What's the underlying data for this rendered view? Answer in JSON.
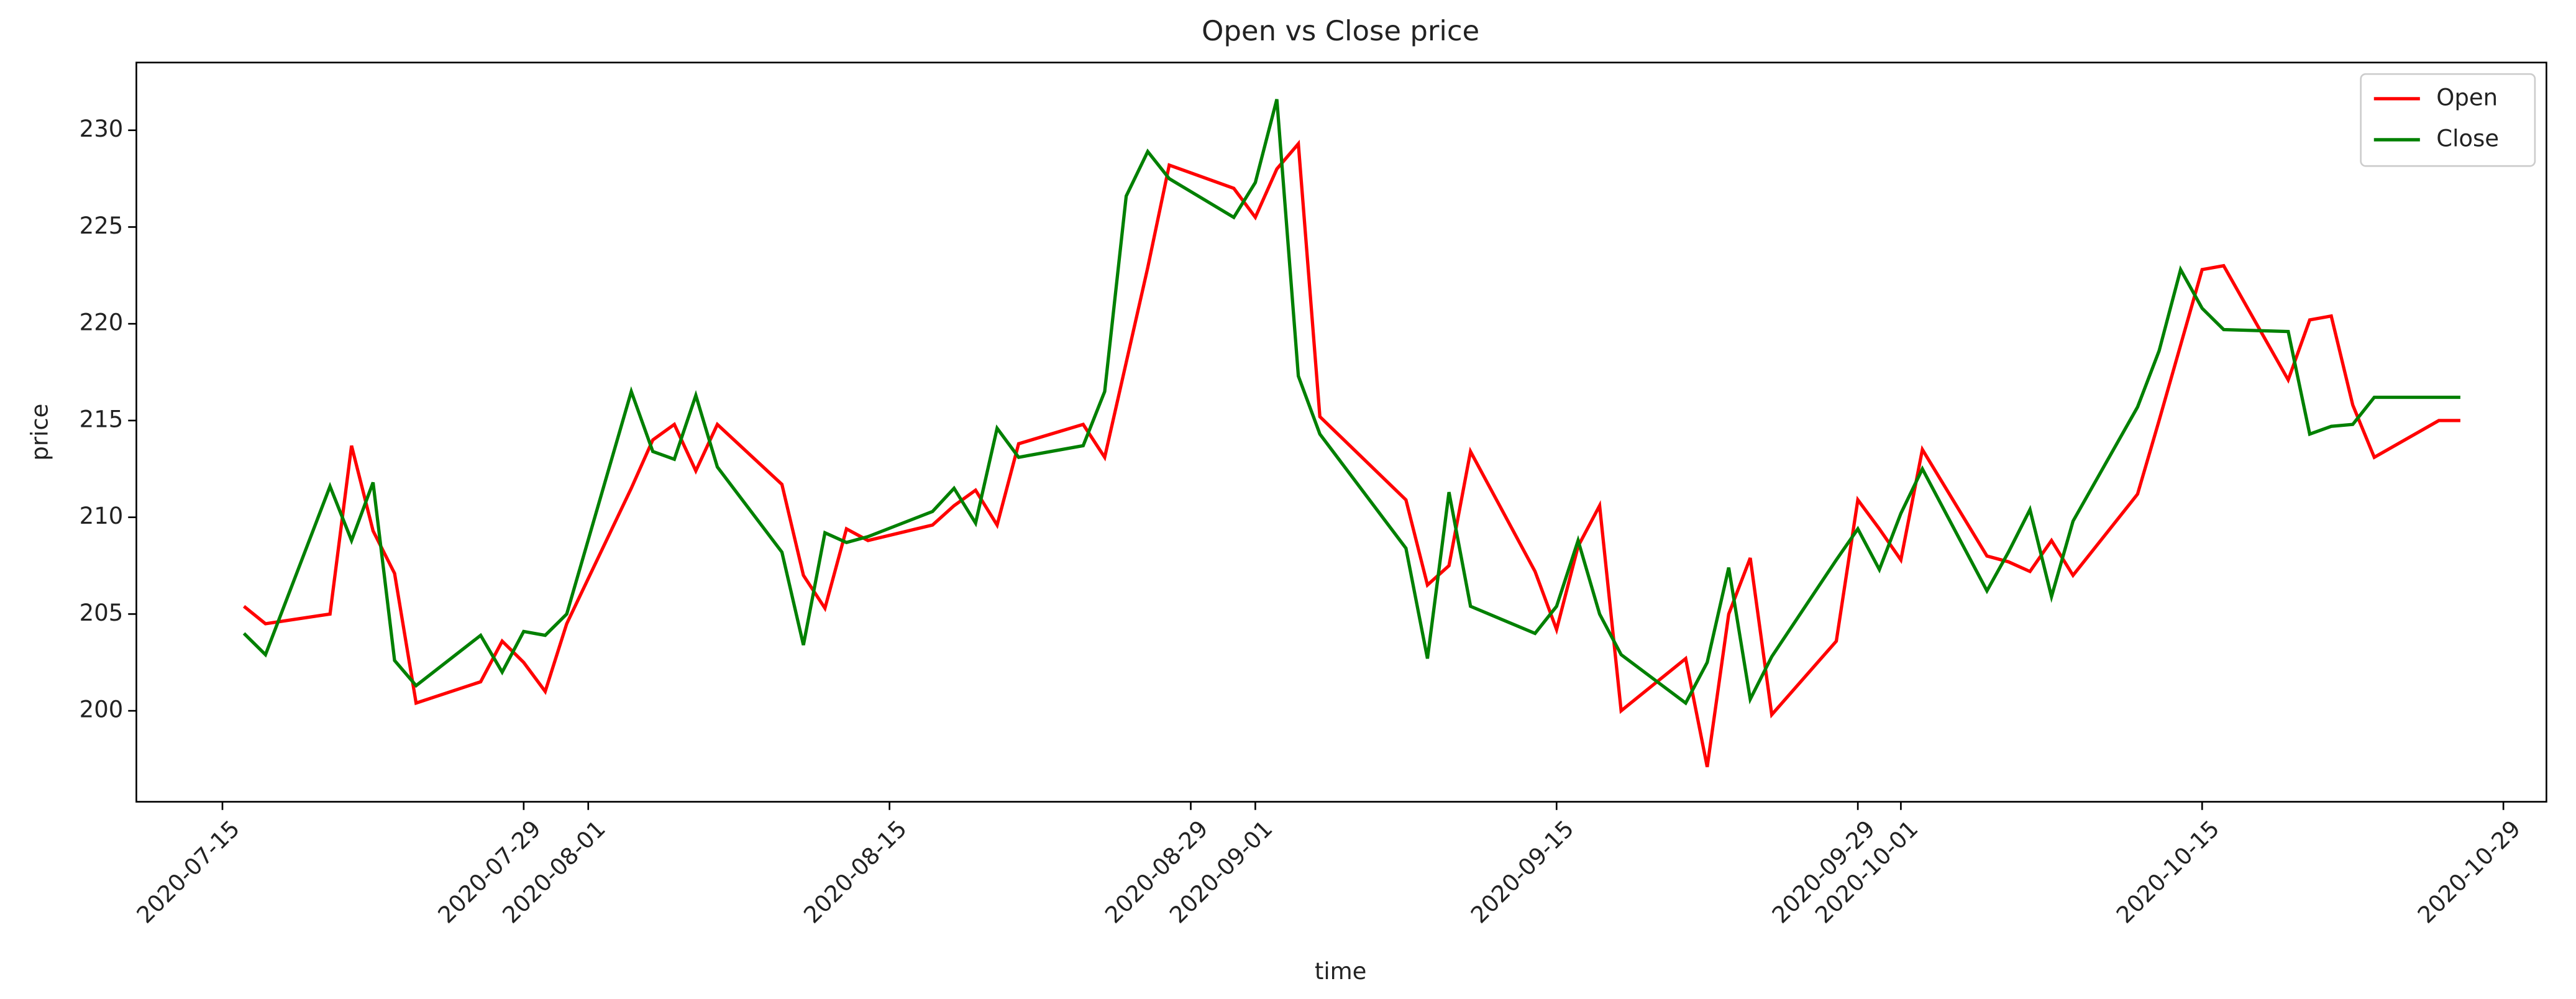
{
  "chart_data": {
    "type": "line",
    "title": "Open vs Close price",
    "x_label": "time",
    "y_label": "price",
    "x": [
      "2020-07-16",
      "2020-07-17",
      "2020-07-20",
      "2020-07-21",
      "2020-07-22",
      "2020-07-23",
      "2020-07-24",
      "2020-07-27",
      "2020-07-28",
      "2020-07-29",
      "2020-07-30",
      "2020-07-31",
      "2020-08-03",
      "2020-08-04",
      "2020-08-05",
      "2020-08-06",
      "2020-08-07",
      "2020-08-10",
      "2020-08-11",
      "2020-08-12",
      "2020-08-13",
      "2020-08-14",
      "2020-08-17",
      "2020-08-18",
      "2020-08-19",
      "2020-08-20",
      "2020-08-21",
      "2020-08-24",
      "2020-08-25",
      "2020-08-26",
      "2020-08-27",
      "2020-08-28",
      "2020-08-31",
      "2020-09-01",
      "2020-09-02",
      "2020-09-03",
      "2020-09-04",
      "2020-09-08",
      "2020-09-09",
      "2020-09-10",
      "2020-09-11",
      "2020-09-14",
      "2020-09-15",
      "2020-09-16",
      "2020-09-17",
      "2020-09-18",
      "2020-09-21",
      "2020-09-22",
      "2020-09-23",
      "2020-09-24",
      "2020-09-25",
      "2020-09-28",
      "2020-09-29",
      "2020-09-30",
      "2020-10-01",
      "2020-10-02",
      "2020-10-05",
      "2020-10-06",
      "2020-10-07",
      "2020-10-08",
      "2020-10-09",
      "2020-10-12",
      "2020-10-13",
      "2020-10-14",
      "2020-10-15",
      "2020-10-16",
      "2020-10-19",
      "2020-10-20",
      "2020-10-21",
      "2020-10-22",
      "2020-10-23",
      "2020-10-26",
      "2020-10-27"
    ],
    "series": [
      {
        "name": "Open",
        "color": "#ff0000",
        "values": [
          205.4,
          204.5,
          205.0,
          213.7,
          209.3,
          207.1,
          200.4,
          201.5,
          203.6,
          202.5,
          201.0,
          204.5,
          211.5,
          214.0,
          214.8,
          212.4,
          214.8,
          211.7,
          207.0,
          205.3,
          209.4,
          208.8,
          209.6,
          210.6,
          211.4,
          209.6,
          213.8,
          214.8,
          213.1,
          218.0,
          222.9,
          228.2,
          227.0,
          225.5,
          228.0,
          229.3,
          215.2,
          210.9,
          206.5,
          207.5,
          213.4,
          207.2,
          204.2,
          208.5,
          210.6,
          200.0,
          202.7,
          197.1,
          205.0,
          207.9,
          199.8,
          203.6,
          210.9,
          209.4,
          207.8,
          213.5,
          208.0,
          207.7,
          207.2,
          208.8,
          207.0,
          211.2,
          215.0,
          218.9,
          222.8,
          223.0,
          217.1,
          220.2,
          220.4,
          215.8,
          213.1,
          215.0,
          215.0
        ]
      },
      {
        "name": "Close",
        "color": "#008000",
        "values": [
          204.0,
          202.9,
          211.6,
          208.8,
          211.8,
          202.6,
          201.3,
          203.9,
          202.0,
          204.1,
          203.9,
          205.0,
          216.5,
          213.4,
          213.0,
          216.3,
          212.6,
          208.2,
          203.4,
          209.2,
          208.7,
          209.0,
          210.3,
          211.5,
          209.7,
          214.6,
          213.1,
          213.7,
          216.5,
          226.6,
          228.9,
          227.5,
          225.5,
          227.3,
          231.6,
          217.3,
          214.3,
          208.4,
          202.7,
          211.3,
          205.4,
          204.0,
          205.4,
          208.8,
          205.0,
          202.9,
          200.4,
          202.5,
          207.4,
          200.6,
          202.8,
          207.8,
          209.4,
          207.3,
          210.2,
          212.5,
          206.2,
          208.2,
          210.4,
          205.9,
          209.8,
          215.7,
          218.6,
          222.8,
          220.8,
          219.7,
          219.6,
          214.3,
          214.7,
          214.8,
          216.2,
          216.2,
          216.2
        ]
      }
    ],
    "xlim": [
      "2020-07-11",
      "2020-10-31"
    ],
    "xticks": [
      "2020-07-15",
      "2020-07-29",
      "2020-08-01",
      "2020-08-15",
      "2020-08-29",
      "2020-09-01",
      "2020-09-15",
      "2020-09-29",
      "2020-10-01",
      "2020-10-15",
      "2020-10-29"
    ],
    "ylim": [
      195.3,
      233.5
    ],
    "yticks": [
      200,
      205,
      210,
      215,
      220,
      225,
      230
    ],
    "legend": "upper right",
    "grid": false
  }
}
